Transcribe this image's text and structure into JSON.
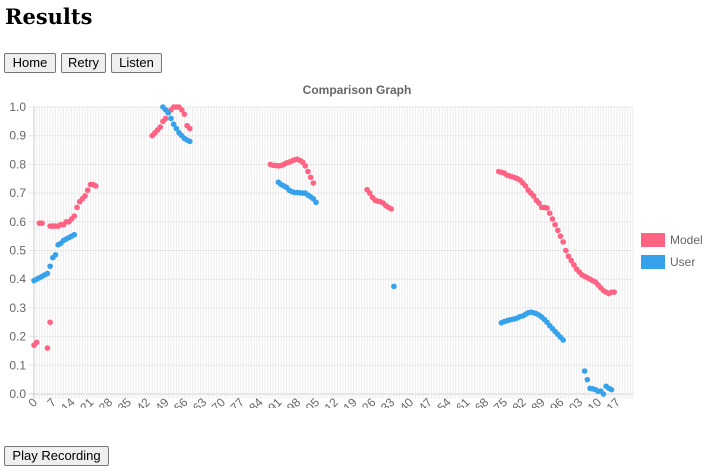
{
  "page": {
    "title": "Results"
  },
  "buttons": {
    "home": "Home",
    "retry": "Retry",
    "listen": "Listen",
    "play": "Play Recording"
  },
  "chart_data": {
    "type": "scatter",
    "title": "Comparison Graph",
    "xlabel": "",
    "ylabel": "",
    "xlim": [
      0,
      223
    ],
    "ylim": [
      0,
      1.0
    ],
    "x_ticks": [
      0,
      7,
      14,
      21,
      28,
      35,
      42,
      49,
      56,
      63,
      70,
      77,
      84,
      91,
      98,
      105,
      112,
      119,
      126,
      133,
      140,
      147,
      154,
      161,
      168,
      175,
      182,
      189,
      196,
      203,
      210,
      217
    ],
    "y_ticks": [
      0,
      0.1,
      0.2,
      0.3,
      0.4,
      0.5,
      0.6,
      0.7,
      0.8,
      0.9,
      1.0
    ],
    "legend_position": "right",
    "series": [
      {
        "name": "Model",
        "color": "#ff6384",
        "points": [
          [
            0,
            0.17
          ],
          [
            1,
            0.18
          ],
          [
            2,
            0.595
          ],
          [
            3,
            0.595
          ],
          [
            5,
            0.16
          ],
          [
            6,
            0.25
          ],
          [
            6,
            0.585
          ],
          [
            7,
            0.585
          ],
          [
            8,
            0.585
          ],
          [
            9,
            0.585
          ],
          [
            10,
            0.59
          ],
          [
            11,
            0.59
          ],
          [
            12,
            0.6
          ],
          [
            13,
            0.6
          ],
          [
            14,
            0.61
          ],
          [
            15,
            0.62
          ],
          [
            16,
            0.65
          ],
          [
            17,
            0.67
          ],
          [
            18,
            0.68
          ],
          [
            19,
            0.69
          ],
          [
            20,
            0.71
          ],
          [
            21,
            0.73
          ],
          [
            22,
            0.73
          ],
          [
            23,
            0.725
          ],
          [
            44,
            0.9
          ],
          [
            45,
            0.91
          ],
          [
            46,
            0.92
          ],
          [
            47,
            0.93
          ],
          [
            48,
            0.95
          ],
          [
            49,
            0.96
          ],
          [
            50,
            0.98
          ],
          [
            51,
            0.99
          ],
          [
            52,
            1.0
          ],
          [
            53,
            1.0
          ],
          [
            54,
            1.0
          ],
          [
            55,
            0.99
          ],
          [
            56,
            0.975
          ],
          [
            57,
            0.935
          ],
          [
            58,
            0.925
          ],
          [
            88,
            0.8
          ],
          [
            89,
            0.797
          ],
          [
            90,
            0.796
          ],
          [
            91,
            0.795
          ],
          [
            92,
            0.796
          ],
          [
            93,
            0.8
          ],
          [
            94,
            0.805
          ],
          [
            95,
            0.808
          ],
          [
            96,
            0.812
          ],
          [
            97,
            0.816
          ],
          [
            98,
            0.818
          ],
          [
            99,
            0.814
          ],
          [
            100,
            0.808
          ],
          [
            101,
            0.795
          ],
          [
            102,
            0.775
          ],
          [
            103,
            0.755
          ],
          [
            104,
            0.735
          ],
          [
            124,
            0.712
          ],
          [
            125,
            0.7
          ],
          [
            126,
            0.685
          ],
          [
            127,
            0.675
          ],
          [
            128,
            0.672
          ],
          [
            129,
            0.67
          ],
          [
            130,
            0.665
          ],
          [
            131,
            0.656
          ],
          [
            132,
            0.65
          ],
          [
            133,
            0.645
          ],
          [
            173,
            0.775
          ],
          [
            174,
            0.773
          ],
          [
            175,
            0.77
          ],
          [
            176,
            0.763
          ],
          [
            177,
            0.76
          ],
          [
            178,
            0.757
          ],
          [
            179,
            0.754
          ],
          [
            180,
            0.75
          ],
          [
            181,
            0.745
          ],
          [
            182,
            0.735
          ],
          [
            183,
            0.725
          ],
          [
            184,
            0.71
          ],
          [
            185,
            0.7
          ],
          [
            186,
            0.69
          ],
          [
            187,
            0.675
          ],
          [
            188,
            0.665
          ],
          [
            189,
            0.65
          ],
          [
            190,
            0.65
          ],
          [
            191,
            0.648
          ],
          [
            192,
            0.63
          ],
          [
            193,
            0.61
          ],
          [
            194,
            0.59
          ],
          [
            195,
            0.57
          ],
          [
            196,
            0.55
          ],
          [
            197,
            0.53
          ],
          [
            198,
            0.5
          ],
          [
            199,
            0.48
          ],
          [
            200,
            0.465
          ],
          [
            201,
            0.45
          ],
          [
            202,
            0.435
          ],
          [
            203,
            0.425
          ],
          [
            204,
            0.415
          ],
          [
            205,
            0.41
          ],
          [
            206,
            0.405
          ],
          [
            207,
            0.4
          ],
          [
            208,
            0.395
          ],
          [
            209,
            0.39
          ],
          [
            210,
            0.38
          ],
          [
            211,
            0.37
          ],
          [
            212,
            0.36
          ],
          [
            213,
            0.355
          ],
          [
            214,
            0.35
          ],
          [
            215,
            0.355
          ],
          [
            216,
            0.355
          ]
        ]
      },
      {
        "name": "User",
        "color": "#36a2eb",
        "points": [
          [
            0,
            0.395
          ],
          [
            1,
            0.4
          ],
          [
            2,
            0.405
          ],
          [
            3,
            0.41
          ],
          [
            4,
            0.415
          ],
          [
            5,
            0.42
          ],
          [
            6,
            0.445
          ],
          [
            7,
            0.475
          ],
          [
            8,
            0.485
          ],
          [
            9,
            0.52
          ],
          [
            10,
            0.525
          ],
          [
            11,
            0.535
          ],
          [
            12,
            0.54
          ],
          [
            13,
            0.545
          ],
          [
            14,
            0.55
          ],
          [
            15,
            0.555
          ],
          [
            48,
            1.0
          ],
          [
            49,
            0.99
          ],
          [
            50,
            0.98
          ],
          [
            51,
            0.96
          ],
          [
            52,
            0.94
          ],
          [
            53,
            0.925
          ],
          [
            54,
            0.91
          ],
          [
            55,
            0.9
          ],
          [
            56,
            0.89
          ],
          [
            57,
            0.885
          ],
          [
            58,
            0.88
          ],
          [
            91,
            0.738
          ],
          [
            92,
            0.73
          ],
          [
            93,
            0.725
          ],
          [
            94,
            0.72
          ],
          [
            95,
            0.71
          ],
          [
            96,
            0.705
          ],
          [
            97,
            0.702
          ],
          [
            98,
            0.702
          ],
          [
            99,
            0.701
          ],
          [
            100,
            0.7
          ],
          [
            101,
            0.7
          ],
          [
            102,
            0.693
          ],
          [
            103,
            0.687
          ],
          [
            104,
            0.68
          ],
          [
            105,
            0.668
          ],
          [
            134,
            0.375
          ],
          [
            174,
            0.248
          ],
          [
            175,
            0.252
          ],
          [
            176,
            0.255
          ],
          [
            177,
            0.258
          ],
          [
            178,
            0.26
          ],
          [
            179,
            0.262
          ],
          [
            180,
            0.265
          ],
          [
            181,
            0.27
          ],
          [
            182,
            0.272
          ],
          [
            183,
            0.278
          ],
          [
            184,
            0.283
          ],
          [
            185,
            0.285
          ],
          [
            186,
            0.283
          ],
          [
            187,
            0.28
          ],
          [
            188,
            0.275
          ],
          [
            189,
            0.268
          ],
          [
            190,
            0.26
          ],
          [
            191,
            0.25
          ],
          [
            192,
            0.238
          ],
          [
            193,
            0.228
          ],
          [
            194,
            0.218
          ],
          [
            195,
            0.208
          ],
          [
            196,
            0.198
          ],
          [
            197,
            0.188
          ],
          [
            205,
            0.08
          ],
          [
            206,
            0.05
          ],
          [
            207,
            0.02
          ],
          [
            208,
            0.018
          ],
          [
            209,
            0.015
          ],
          [
            210,
            0.01
          ],
          [
            211,
            0.01
          ],
          [
            212,
            0.0
          ],
          [
            213,
            0.027
          ],
          [
            214,
            0.02
          ],
          [
            215,
            0.015
          ]
        ]
      }
    ]
  }
}
